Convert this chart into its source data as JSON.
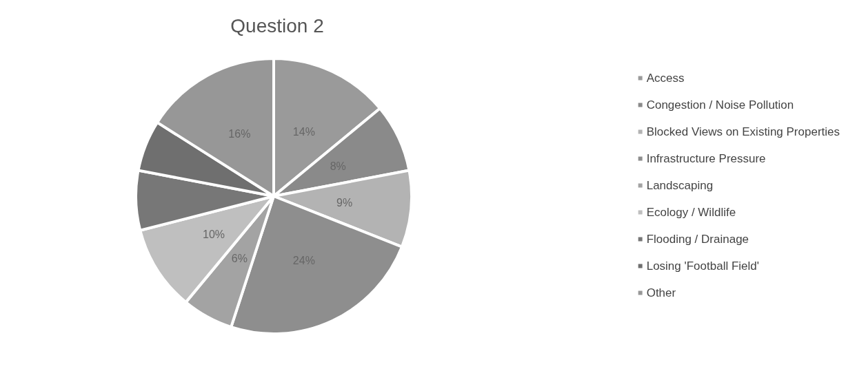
{
  "chart_data": {
    "type": "pie",
    "title": "Question 2",
    "categories": [
      "Access",
      "Congestion / Noise Pollution",
      "Blocked Views on Existing Properties",
      "Infrastructure Pressure",
      "Landscaping",
      "Ecology / Wildlife",
      "Flooding / Drainage",
      "Losing 'Football Field'",
      "Other"
    ],
    "values": [
      14,
      8,
      9,
      24,
      6,
      10,
      7,
      6,
      16
    ],
    "value_labels": [
      "14%",
      "8%",
      "9%",
      "24%",
      "6%",
      "10%",
      null,
      null,
      "16%"
    ],
    "colors": [
      "#9a9a9a",
      "#8a8a8a",
      "#b3b3b3",
      "#8e8e8e",
      "#a3a3a3",
      "#bfbfbf",
      "#777777",
      "#6f6f6f",
      "#979797"
    ],
    "legend": "right"
  }
}
